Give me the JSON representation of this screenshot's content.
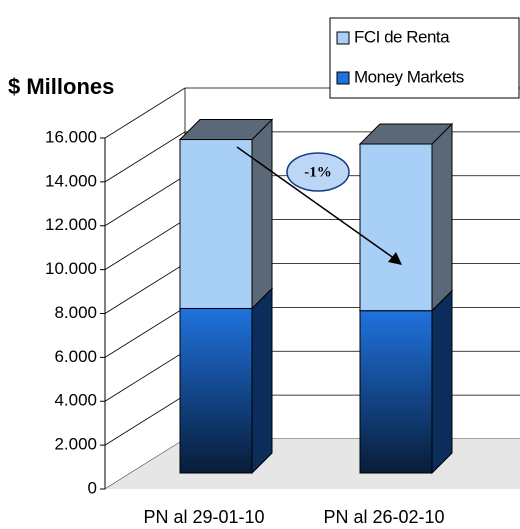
{
  "chart_data": {
    "type": "bar3d_stacked",
    "y_label": "$ Millones",
    "categories": [
      "PN al 29-01-10",
      "PN al 26-02-10"
    ],
    "series": [
      {
        "name": "Money Markets",
        "color": "#1f72de",
        "values": [
          7500,
          7400
        ]
      },
      {
        "name": "FCI de Renta",
        "color": "#a8cff5",
        "values": [
          7700,
          7600
        ]
      }
    ],
    "ylim": [
      0,
      16000
    ],
    "yticks": [
      0,
      {
        "value": 2000,
        "label": "2.000"
      },
      {
        "value": 4000,
        "label": "4.000"
      },
      {
        "value": 6000,
        "label": "6.000"
      },
      {
        "value": 8000,
        "label": "8.000"
      },
      {
        "value": 10000,
        "label": "10.000"
      },
      {
        "value": 12000,
        "label": "12.000"
      },
      {
        "value": 14000,
        "label": "14.000"
      },
      {
        "value": 16000,
        "label": "16.000"
      }
    ],
    "grid": true,
    "annotation": "-1%"
  }
}
